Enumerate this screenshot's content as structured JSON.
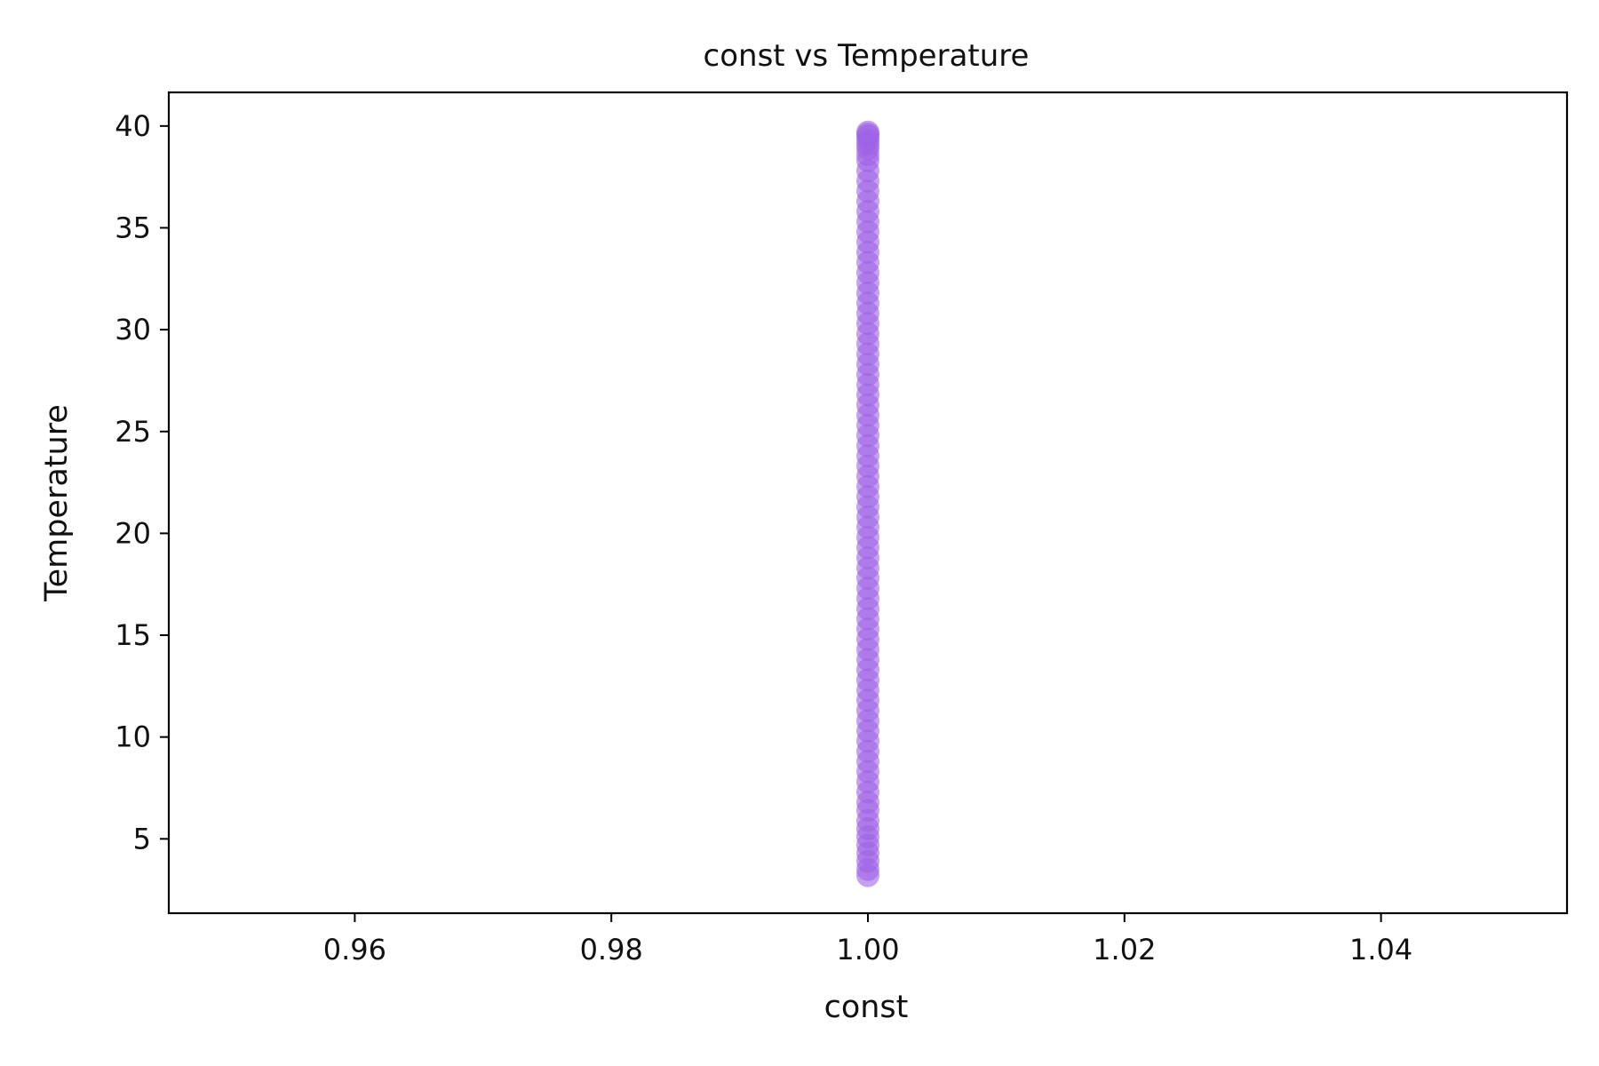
{
  "chart_data": {
    "type": "scatter",
    "title": "const vs Temperature",
    "xlabel": "const",
    "ylabel": "Temperature",
    "xlim": [
      0.9455,
      1.0545
    ],
    "ylim": [
      1.35,
      41.65
    ],
    "xticks": [
      0.96,
      0.98,
      1.0,
      1.02,
      1.04
    ],
    "xtick_labels": [
      "0.96",
      "0.98",
      "1.00",
      "1.02",
      "1.04"
    ],
    "yticks": [
      5,
      10,
      15,
      20,
      25,
      30,
      35,
      40
    ],
    "ytick_labels": [
      "5",
      "10",
      "15",
      "20",
      "25",
      "30",
      "35",
      "40"
    ],
    "grid": false,
    "legend": "none",
    "series": [
      {
        "color": "#9f63e6",
        "alpha": 0.6,
        "x": [
          1,
          1,
          1,
          1,
          1,
          1,
          1,
          1,
          1,
          1,
          1,
          1,
          1,
          1,
          1,
          1,
          1,
          1,
          1,
          1,
          1,
          1,
          1,
          1,
          1,
          1,
          1,
          1,
          1,
          1,
          1,
          1,
          1,
          1,
          1,
          1,
          1,
          1,
          1,
          1,
          1,
          1,
          1,
          1,
          1,
          1,
          1,
          1,
          1,
          1,
          1,
          1,
          1,
          1,
          1,
          1,
          1,
          1,
          1,
          1,
          1,
          1,
          1,
          1,
          1,
          1,
          1,
          1,
          1,
          1,
          1,
          1,
          1,
          1,
          1,
          1,
          1,
          1,
          1,
          1
        ],
        "y": [
          3.2,
          3.5,
          3.9,
          4.3,
          4.7,
          5.1,
          5.5,
          5.9,
          6.4,
          6.8,
          7.3,
          7.8,
          8.3,
          8.8,
          9.3,
          9.8,
          10.3,
          10.8,
          11.3,
          11.8,
          12.3,
          12.8,
          13.3,
          13.8,
          14.3,
          14.8,
          15.3,
          15.8,
          16.3,
          16.8,
          17.3,
          17.8,
          18.3,
          18.8,
          19.3,
          19.8,
          20.3,
          20.8,
          21.3,
          21.8,
          22.3,
          22.8,
          23.3,
          23.8,
          24.3,
          24.8,
          25.3,
          25.8,
          26.3,
          26.8,
          27.3,
          27.8,
          28.3,
          28.8,
          29.3,
          29.8,
          30.3,
          30.8,
          31.3,
          31.8,
          32.3,
          32.8,
          33.3,
          33.8,
          34.3,
          34.8,
          35.3,
          35.8,
          36.3,
          36.8,
          37.3,
          37.8,
          38.3,
          38.6,
          38.9,
          39.1,
          39.3,
          39.5,
          39.6,
          39.7
        ]
      }
    ]
  }
}
